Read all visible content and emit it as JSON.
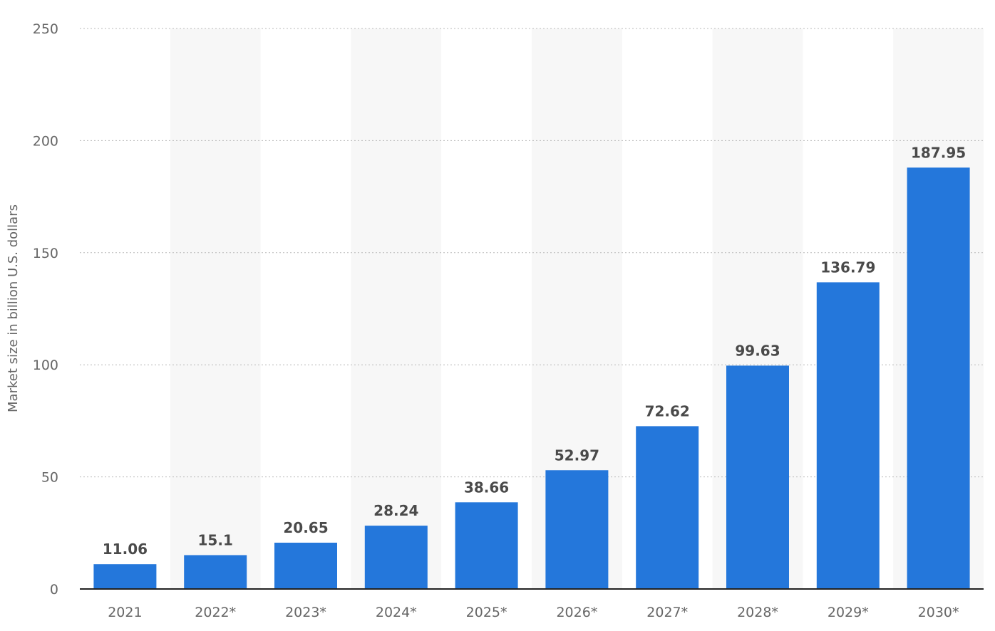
{
  "chart_data": {
    "type": "bar",
    "categories": [
      "2021",
      "2022*",
      "2023*",
      "2024*",
      "2025*",
      "2026*",
      "2027*",
      "2028*",
      "2029*",
      "2030*"
    ],
    "values": [
      11.06,
      15.1,
      20.65,
      28.24,
      38.66,
      52.97,
      72.62,
      99.63,
      136.79,
      187.95
    ],
    "value_labels": [
      "11.06",
      "15.1",
      "20.65",
      "28.24",
      "38.66",
      "52.97",
      "72.62",
      "99.63",
      "136.79",
      "187.95"
    ],
    "title": "",
    "xlabel": "",
    "ylabel": "Market size in billion U.S. dollars",
    "ylim": [
      0,
      250
    ],
    "yticks": [
      0,
      50,
      100,
      150,
      200,
      250
    ],
    "ytick_labels": [
      "0",
      "50",
      "100",
      "150",
      "200",
      "250"
    ],
    "grid": true,
    "legend": "none",
    "bar_color": "#2477db",
    "alternating_band_color": "#f7f7f7"
  }
}
